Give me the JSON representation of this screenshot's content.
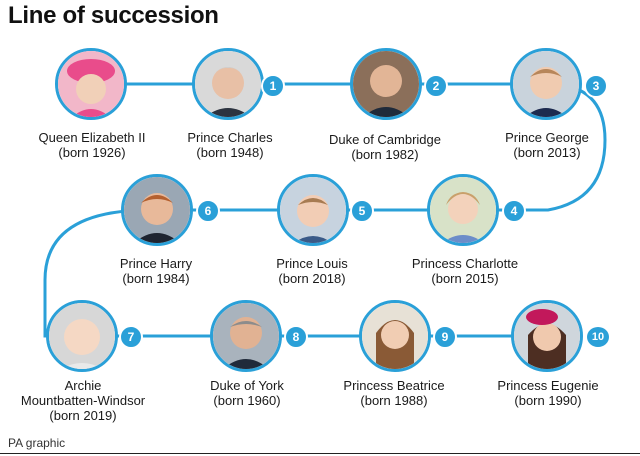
{
  "title": "Line of succession",
  "footer": "PA graphic",
  "accent_color": "#2aa0d8",
  "people": [
    {
      "id": "queen",
      "name": "Queen Elizabeth II",
      "born": "(born 1926)",
      "rank": "",
      "icon": "portrait-icon"
    },
    {
      "id": "charles",
      "name": "Prince Charles",
      "born": "(born 1948)",
      "rank": "1",
      "icon": "portrait-icon"
    },
    {
      "id": "william",
      "name": "Duke of Cambridge",
      "born": "(born 1982)",
      "rank": "2",
      "icon": "portrait-icon"
    },
    {
      "id": "george",
      "name": "Prince George",
      "born": "(born 2013)",
      "rank": "3",
      "icon": "portrait-icon"
    },
    {
      "id": "charlotte",
      "name": "Princess Charlotte",
      "born": "(born 2015)",
      "rank": "4",
      "icon": "portrait-icon"
    },
    {
      "id": "louis",
      "name": "Prince Louis",
      "born": "(born 2018)",
      "rank": "5",
      "icon": "portrait-icon"
    },
    {
      "id": "harry",
      "name": "Prince Harry",
      "born": "(born 1984)",
      "rank": "6",
      "icon": "portrait-icon"
    },
    {
      "id": "archie",
      "name_lines": [
        "Archie",
        "Mountbatten-Windsor"
      ],
      "born": "(born 2019)",
      "rank": "7",
      "icon": "portrait-icon"
    },
    {
      "id": "andrew",
      "name": "Duke of York",
      "born": "(born 1960)",
      "rank": "8",
      "icon": "portrait-icon"
    },
    {
      "id": "beatrice",
      "name": "Princess Beatrice",
      "born": "(born 1988)",
      "rank": "9",
      "icon": "portrait-icon"
    },
    {
      "id": "eugenie",
      "name": "Princess Eugenie",
      "born": "(born 1990)",
      "rank": "10",
      "icon": "portrait-icon"
    }
  ]
}
